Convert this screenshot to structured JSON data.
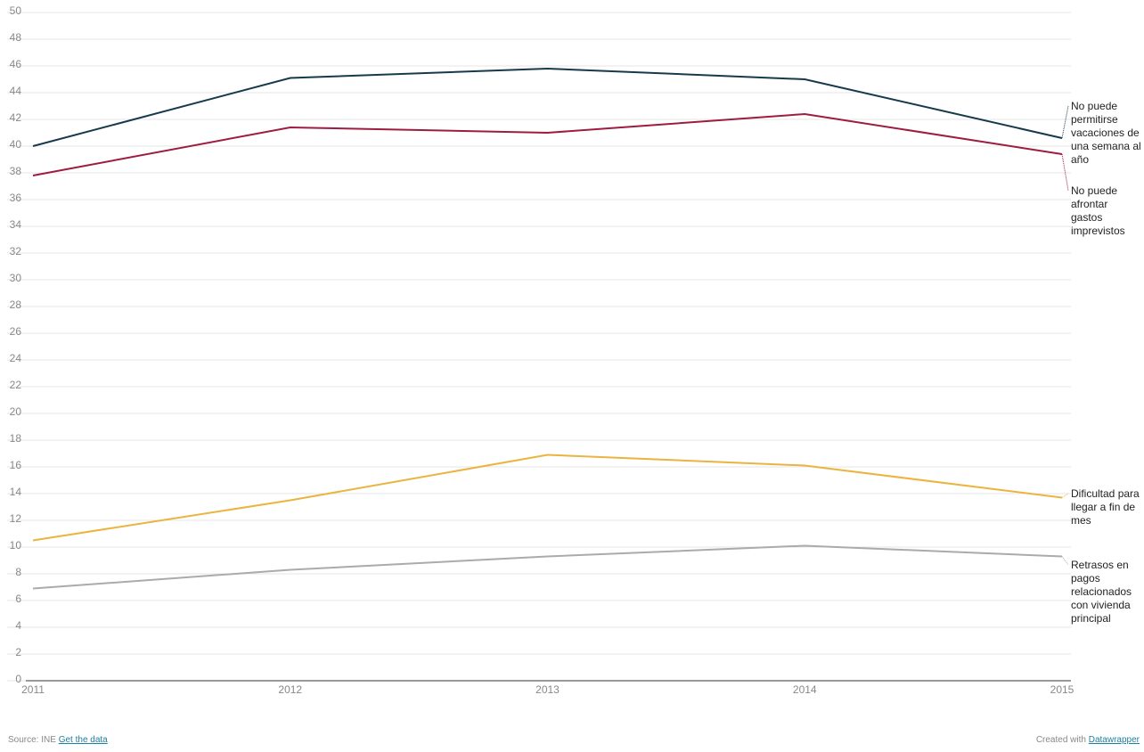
{
  "chart_data": {
    "type": "line",
    "x": [
      2011,
      2012,
      2013,
      2014,
      2015
    ],
    "series": [
      {
        "name": "No puede permitirse vacaciones de una semana al año",
        "color": "#163a4b",
        "values": [
          40.0,
          45.1,
          45.8,
          45.0,
          40.6
        ]
      },
      {
        "name": "No puede afrontar gastos imprevistos",
        "color": "#9d1c40",
        "values": [
          37.8,
          41.4,
          41.0,
          42.4,
          39.4
        ]
      },
      {
        "name": "Dificultad para llegar a fin de mes",
        "color": "#ebb43f",
        "values": [
          10.5,
          13.5,
          16.9,
          16.1,
          13.7
        ]
      },
      {
        "name": "Retrasos en pagos relacionados con vivienda principal",
        "color": "#ababab",
        "values": [
          6.9,
          8.3,
          9.3,
          10.1,
          9.3
        ]
      }
    ],
    "xlim": [
      2011,
      2015
    ],
    "ylim": [
      0,
      50
    ],
    "yticks": [
      0,
      2,
      4,
      6,
      8,
      10,
      12,
      14,
      16,
      18,
      20,
      22,
      24,
      26,
      28,
      30,
      32,
      34,
      36,
      38,
      40,
      42,
      44,
      46,
      48,
      50
    ],
    "grid": true
  },
  "footer": {
    "source": "Source: INE",
    "get_data": "Get the data",
    "credit": "Created with",
    "credit_link": "Datawrapper"
  }
}
